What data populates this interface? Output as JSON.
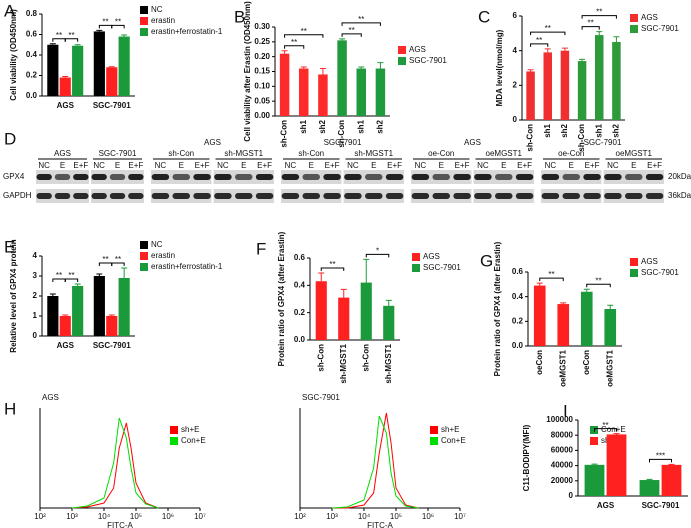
{
  "chart_data": [
    {
      "type": "bar",
      "panel": "A",
      "ylabel": "Cell viability (OD450nm)",
      "categories": [
        "AGS",
        "SGC-7901"
      ],
      "series": [
        {
          "name": "NC",
          "color": "#000000",
          "values": [
            0.5,
            0.63
          ],
          "errors": [
            0.01,
            0.01
          ]
        },
        {
          "name": "erastin",
          "color": "#ff2020",
          "values": [
            0.18,
            0.28
          ],
          "errors": [
            0.01,
            0.005
          ]
        },
        {
          "name": "erastin+ferrostatin-1",
          "color": "#1a9a3a",
          "values": [
            0.49,
            0.58
          ],
          "errors": [
            0.01,
            0.015
          ]
        }
      ],
      "ylim": [
        0,
        0.8
      ],
      "yticks": [
        {
          "value": 0,
          "label": "0.0"
        },
        0.2,
        0.4,
        0.6,
        0.8
      ],
      "annotations": [
        "**",
        "**",
        "**",
        "**"
      ]
    },
    {
      "type": "bar",
      "panel": "B",
      "ylabel": "Cell viability after Erastin (OD450nm)",
      "categories": [
        "sh-Con",
        "sh1",
        "sh2",
        "sh-Con",
        "sh1",
        "sh2"
      ],
      "series": [
        {
          "name": "AGS",
          "color": "#ff2a2a",
          "values": [
            0.21,
            0.16,
            0.14,
            null,
            null,
            null
          ],
          "errors": [
            0.01,
            0.005,
            0.02,
            null,
            null,
            null
          ]
        },
        {
          "name": "SGC-7901",
          "color": "#1f9a3c",
          "values": [
            null,
            null,
            null,
            0.255,
            0.16,
            0.16
          ],
          "errors": [
            null,
            null,
            null,
            0.005,
            0.005,
            0.02
          ]
        }
      ],
      "ylim": [
        0,
        0.3
      ],
      "yticks": [
        {
          "value": 0,
          "label": "0.00"
        },
        0.05,
        {
          "value": 0.1,
          "label": "0.10"
        },
        0.15,
        {
          "value": 0.2,
          "label": "0.20"
        },
        0.25,
        {
          "value": 0.3,
          "label": "0.30"
        }
      ],
      "annotations": [
        "**",
        "**",
        "**",
        "**"
      ]
    },
    {
      "type": "bar",
      "panel": "C",
      "ylabel": "MDA level(nmol/mg)",
      "categories": [
        "sh-Con",
        "sh1",
        "sh2",
        "sh-Con",
        "sh1",
        "sh2"
      ],
      "series": [
        {
          "name": "AGS",
          "color": "#f03030",
          "values": [
            2.8,
            3.9,
            4.0,
            null,
            null,
            null
          ],
          "errors": [
            0.1,
            0.2,
            0.15,
            null,
            null,
            null
          ]
        },
        {
          "name": "SGC-7901",
          "color": "#2e9a3a",
          "values": [
            null,
            null,
            null,
            3.4,
            4.9,
            4.5
          ],
          "errors": [
            null,
            null,
            null,
            0.1,
            0.2,
            0.3
          ]
        }
      ],
      "ylim": [
        0,
        6
      ],
      "yticks": [
        0,
        2,
        4,
        6
      ],
      "annotations": [
        "**",
        "**",
        "**",
        "**"
      ]
    },
    {
      "type": "bar",
      "panel": "E",
      "ylabel": "Relative level of GPX4 protein",
      "categories": [
        "AGS",
        "SGC-7901"
      ],
      "series": [
        {
          "name": "NC",
          "color": "#000000",
          "values": [
            2.0,
            3.0
          ],
          "errors": [
            0.1,
            0.1
          ]
        },
        {
          "name": "erastin",
          "color": "#ff2020",
          "values": [
            1.0,
            1.0
          ],
          "errors": [
            0.05,
            0.05
          ]
        },
        {
          "name": "erastin+ferrostatin-1",
          "color": "#1a9a3a",
          "values": [
            2.5,
            2.9
          ],
          "errors": [
            0.1,
            0.5
          ]
        }
      ],
      "ylim": [
        0,
        4
      ],
      "yticks": [
        0,
        1,
        2,
        3,
        4
      ],
      "annotations": [
        "**",
        "**",
        "**",
        "**"
      ]
    },
    {
      "type": "bar",
      "panel": "F",
      "ylabel": "Protein ratio of GPX4 (after Erastin)",
      "categories": [
        "sh-Con",
        "sh-MGST1",
        "sh-Con",
        "sh-MGST1"
      ],
      "series": [
        {
          "name": "AGS",
          "color": "#ff2020",
          "values": [
            0.43,
            0.31,
            null,
            null
          ],
          "errors": [
            0.06,
            0.06,
            null,
            null
          ]
        },
        {
          "name": "SGC-7901",
          "color": "#1a9a3a",
          "values": [
            null,
            null,
            0.42,
            0.25
          ],
          "errors": [
            null,
            null,
            0.17,
            0.04
          ]
        }
      ],
      "ylim": [
        0,
        0.6
      ],
      "yticks": [
        {
          "value": 0,
          "label": "0.0"
        },
        0.2,
        0.4,
        0.6
      ],
      "annotations": [
        "**",
        "*"
      ]
    },
    {
      "type": "bar",
      "panel": "G",
      "ylabel": "Protein ratio of GPX4 (after Erastin)",
      "categories": [
        "oeCon",
        "oeMGST1",
        "oeCon",
        "oeMGST1"
      ],
      "series": [
        {
          "name": "AGS",
          "color": "#ff2020",
          "values": [
            0.49,
            0.34,
            null,
            null
          ],
          "errors": [
            0.02,
            0.01,
            null,
            null
          ]
        },
        {
          "name": "SGC-7901",
          "color": "#1a9a3a",
          "values": [
            null,
            null,
            0.44,
            0.3
          ],
          "errors": [
            null,
            null,
            0.02,
            0.03
          ]
        }
      ],
      "ylim": [
        0,
        0.6
      ],
      "yticks": [
        {
          "value": 0,
          "label": "0.0"
        },
        0.2,
        0.4,
        0.6
      ],
      "annotations": [
        "**",
        "**"
      ]
    },
    {
      "type": "line",
      "panel": "H",
      "title": "AGS",
      "xlabel": "FITC-A",
      "xscale": "log",
      "x": [
        1000,
        3000,
        10000,
        20000,
        30000,
        50000,
        70000,
        100000,
        200000,
        500000
      ],
      "series": [
        {
          "name": "sh+E",
          "color": "#ff0000",
          "values": [
            0,
            1,
            5,
            20,
            60,
            85,
            60,
            25,
            5,
            0
          ]
        },
        {
          "name": "Con+E",
          "color": "#00dd00",
          "values": [
            0,
            2,
            10,
            45,
            90,
            70,
            40,
            15,
            4,
            0
          ]
        }
      ],
      "xlim": [
        100,
        10000000
      ],
      "ylim": [
        0,
        100
      ],
      "xticks": [
        {
          "value": 100,
          "label": "10²"
        },
        {
          "value": 1000,
          "label": "10³"
        },
        {
          "value": 10000,
          "label": "10⁴"
        },
        {
          "value": 100000,
          "label": "10⁵"
        },
        {
          "value": 1000000,
          "label": "10⁶"
        },
        {
          "value": 10000000,
          "label": "10⁷"
        }
      ]
    },
    {
      "type": "line",
      "title": "SGC-7901",
      "xlabel": "FITC-A",
      "xscale": "log",
      "x": [
        1000,
        3000,
        10000,
        20000,
        30000,
        50000,
        70000,
        100000,
        200000,
        500000
      ],
      "series": [
        {
          "name": "sh+E",
          "color": "#ff0000",
          "values": [
            0,
            0,
            3,
            15,
            55,
            95,
            65,
            20,
            3,
            0
          ]
        },
        {
          "name": "Con+E",
          "color": "#00dd00",
          "values": [
            0,
            1,
            8,
            40,
            92,
            75,
            35,
            12,
            2,
            0
          ]
        }
      ],
      "xlim": [
        100,
        10000000
      ],
      "ylim": [
        0,
        100
      ],
      "xticks": [
        {
          "value": 100,
          "label": "10²"
        },
        {
          "value": 1000,
          "label": "10³"
        },
        {
          "value": 10000,
          "label": "10⁴"
        },
        {
          "value": 100000,
          "label": "10⁵"
        },
        {
          "value": 1000000,
          "label": "10⁶"
        },
        {
          "value": 10000000,
          "label": "10⁷"
        }
      ]
    },
    {
      "type": "bar",
      "panel": "I",
      "ylabel": "C11-BODIPY(MFI)",
      "categories": [
        "AGS",
        "SGC-7901"
      ],
      "series": [
        {
          "name": "Con+E",
          "color": "#1a9a3a",
          "values": [
            41000,
            21000
          ],
          "errors": [
            1000,
            800
          ]
        },
        {
          "name": "sh+E",
          "color": "#ff2020",
          "values": [
            81000,
            41000
          ],
          "errors": [
            1000,
            600
          ]
        }
      ],
      "ylim": [
        0,
        100000
      ],
      "yticks": [
        0,
        20000,
        40000,
        60000,
        80000,
        100000
      ],
      "annotations": [
        "**",
        "***"
      ]
    }
  ],
  "blots": {
    "panel": "D",
    "row_labels": [
      "GPX4",
      "GAPDH"
    ],
    "markers": [
      "20kDa",
      "36kDa"
    ],
    "groups": [
      {
        "subgroups": [
          {
            "label": "AGS",
            "lanes": [
              "NC",
              "E",
              "E+F"
            ]
          },
          {
            "label": "SGC-7901",
            "lanes": [
              "NC",
              "E",
              "E+F"
            ]
          }
        ]
      },
      {
        "title": "AGS",
        "subgroups": [
          {
            "label": "sh-Con",
            "lanes": [
              "NC",
              "E",
              "E+F"
            ]
          },
          {
            "label": "sh-MGST1",
            "lanes": [
              "NC",
              "E",
              "E+F"
            ]
          }
        ]
      },
      {
        "title": "SGC-7901",
        "subgroups": [
          {
            "label": "sh-Con",
            "lanes": [
              "NC",
              "E",
              "E+F"
            ]
          },
          {
            "label": "sh-MGST1",
            "lanes": [
              "NC",
              "E",
              "E+F"
            ]
          }
        ]
      },
      {
        "title": "AGS",
        "subgroups": [
          {
            "label": "oe-Con",
            "lanes": [
              "NC",
              "E",
              "E+F"
            ]
          },
          {
            "label": "oeMGST1",
            "lanes": [
              "NC",
              "E",
              "E+F"
            ]
          }
        ]
      },
      {
        "title": "SGC-7901",
        "subgroups": [
          {
            "label": "oe-Con",
            "lanes": [
              "NC",
              "E",
              "E+F"
            ]
          },
          {
            "label": "oeMGST1",
            "lanes": [
              "NC",
              "E",
              "E+F"
            ]
          }
        ]
      }
    ]
  }
}
